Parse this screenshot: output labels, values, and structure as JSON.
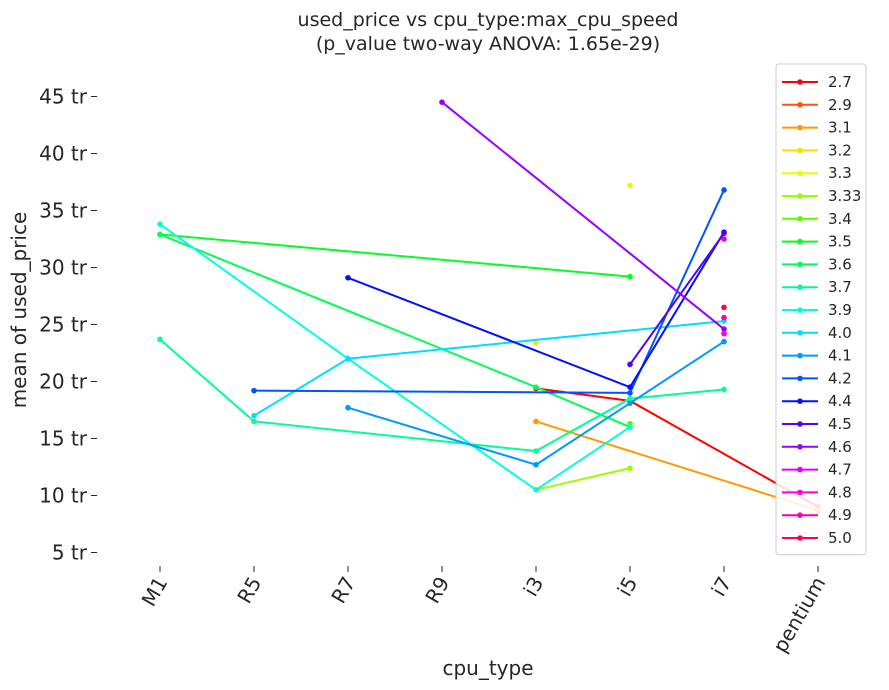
{
  "chart_data": {
    "type": "line",
    "title": "used_price vs cpu_type:max_cpu_speed",
    "subtitle": "(p_value two-way ANOVA: 1.65e-29)",
    "xlabel": "cpu_type",
    "ylabel": "mean of used_price",
    "categories": [
      "M1",
      "R5",
      "R7",
      "R9",
      "i3",
      "i5",
      "i7",
      "pentium"
    ],
    "yticks": [
      5,
      10,
      15,
      20,
      25,
      30,
      35,
      40,
      45
    ],
    "ytick_labels": [
      "5 tr",
      "10 tr",
      "15 tr",
      "20 tr",
      "25 tr",
      "30 tr",
      "35 tr",
      "40 tr",
      "45 tr"
    ],
    "ylim": [
      4.0,
      47.0
    ],
    "grid": false,
    "legend_position": "right",
    "series": [
      {
        "name": "2.7",
        "color": "#ff0000",
        "points": [
          [
            "i3",
            19.4
          ],
          [
            "i5",
            18.3
          ],
          [
            "pentium",
            9.0
          ]
        ]
      },
      {
        "name": "2.9",
        "color": "#ff5500",
        "points": []
      },
      {
        "name": "3.1",
        "color": "#ff9900",
        "points": [
          [
            "i3",
            16.5
          ],
          [
            "pentium",
            8.7
          ]
        ]
      },
      {
        "name": "3.2",
        "color": "#ffdd00",
        "points": [
          [
            "i3",
            23.4
          ]
        ]
      },
      {
        "name": "3.3",
        "color": "#ddff00",
        "points": [
          [
            "i5",
            37.2
          ]
        ]
      },
      {
        "name": "3.33",
        "color": "#99ff00",
        "points": [
          [
            "i3",
            10.5
          ],
          [
            "i5",
            12.4
          ]
        ]
      },
      {
        "name": "3.4",
        "color": "#55ff00",
        "points": [
          [
            "i5",
            16.3
          ]
        ]
      },
      {
        "name": "3.5",
        "color": "#00ff22",
        "points": [
          [
            "M1",
            32.9
          ],
          [
            "i5",
            29.2
          ]
        ]
      },
      {
        "name": "3.6",
        "color": "#00ff55",
        "points": [
          [
            "M1",
            32.9
          ],
          [
            "i3",
            19.5
          ],
          [
            "i5",
            16.0
          ]
        ]
      },
      {
        "name": "3.7",
        "color": "#00ff99",
        "points": [
          [
            "M1",
            23.7
          ],
          [
            "R5",
            16.5
          ],
          [
            "i3",
            13.9
          ],
          [
            "i5",
            18.5
          ],
          [
            "i7",
            19.3
          ]
        ]
      },
      {
        "name": "3.9",
        "color": "#00ffdd",
        "points": [
          [
            "M1",
            33.8
          ],
          [
            "R7",
            22.0
          ],
          [
            "i3",
            10.5
          ],
          [
            "i5",
            16.0
          ]
        ]
      },
      {
        "name": "4.0",
        "color": "#00ddff",
        "points": [
          [
            "R5",
            17.0
          ],
          [
            "R7",
            22.0
          ],
          [
            "i7",
            25.3
          ]
        ]
      },
      {
        "name": "4.1",
        "color": "#0099ff",
        "points": [
          [
            "R7",
            17.7
          ],
          [
            "i3",
            12.7
          ],
          [
            "i5",
            18.1
          ],
          [
            "i7",
            23.5
          ]
        ]
      },
      {
        "name": "4.2",
        "color": "#0055ff",
        "points": [
          [
            "R5",
            19.2
          ],
          [
            "i5",
            19.0
          ],
          [
            "i7",
            36.8
          ]
        ]
      },
      {
        "name": "4.4",
        "color": "#0011ff",
        "points": [
          [
            "R7",
            29.1
          ],
          [
            "i5",
            19.5
          ],
          [
            "i7",
            33.1
          ]
        ]
      },
      {
        "name": "4.5",
        "color": "#5500ff",
        "points": [
          [
            "i5",
            21.5
          ],
          [
            "i7",
            33.0
          ]
        ]
      },
      {
        "name": "4.6",
        "color": "#9900ff",
        "points": [
          [
            "R9",
            44.5
          ],
          [
            "i7",
            24.6
          ]
        ]
      },
      {
        "name": "4.7",
        "color": "#dd00ff",
        "points": [
          [
            "i7",
            32.5
          ]
        ]
      },
      {
        "name": "4.8",
        "color": "#ff00dd",
        "points": [
          [
            "i7",
            24.2
          ]
        ]
      },
      {
        "name": "4.9",
        "color": "#ff0099",
        "points": [
          [
            "i7",
            25.6
          ]
        ]
      },
      {
        "name": "5.0",
        "color": "#ff0055",
        "points": [
          [
            "i7",
            26.5
          ]
        ]
      }
    ]
  }
}
